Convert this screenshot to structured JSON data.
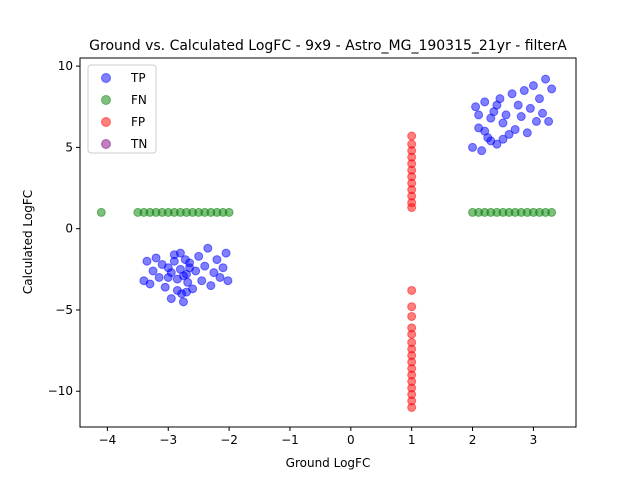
{
  "chart_data": {
    "type": "scatter",
    "title": "Ground vs. Calculated LogFC - 9x9 - Astro_MG_190315_21yr - filterA",
    "xlabel": "Ground LogFC",
    "ylabel": "Calculated LogFC",
    "xlim": [
      -4.45,
      3.7
    ],
    "ylim": [
      -12.2,
      10.5
    ],
    "xticks": [
      -4,
      -3,
      -2,
      -1,
      0,
      1,
      2,
      3
    ],
    "yticks": [
      -10,
      -5,
      0,
      5,
      10
    ],
    "grid": false,
    "legend_position": "top-left",
    "series": [
      {
        "name": "TP",
        "color": "#0000ff",
        "points": [
          [
            -3.4,
            -3.2
          ],
          [
            -3.35,
            -2.0
          ],
          [
            -3.3,
            -3.4
          ],
          [
            -3.25,
            -2.6
          ],
          [
            -3.2,
            -1.8
          ],
          [
            -3.15,
            -3.0
          ],
          [
            -3.1,
            -2.2
          ],
          [
            -3.05,
            -3.6
          ],
          [
            -3.0,
            -2.4
          ],
          [
            -2.95,
            -4.3
          ],
          [
            -2.9,
            -1.6
          ],
          [
            -2.85,
            -3.1
          ],
          [
            -2.8,
            -2.5
          ],
          [
            -2.78,
            -4.0
          ],
          [
            -2.75,
            -4.5
          ],
          [
            -2.72,
            -1.9
          ],
          [
            -2.7,
            -2.8
          ],
          [
            -2.68,
            -3.3
          ],
          [
            -2.65,
            -2.1
          ],
          [
            -2.6,
            -3.7
          ],
          [
            -2.55,
            -2.6
          ],
          [
            -2.5,
            -1.7
          ],
          [
            -2.45,
            -3.2
          ],
          [
            -2.4,
            -2.3
          ],
          [
            -2.35,
            -1.2
          ],
          [
            -2.3,
            -3.5
          ],
          [
            -2.25,
            -2.7
          ],
          [
            -2.2,
            -1.9
          ],
          [
            -2.15,
            -3.0
          ],
          [
            -2.1,
            -2.4
          ],
          [
            -2.05,
            -1.5
          ],
          [
            -2.02,
            -3.2
          ],
          [
            -2.9,
            -2.0
          ],
          [
            -2.85,
            -3.8
          ],
          [
            -2.8,
            -1.5
          ],
          [
            -2.75,
            -2.9
          ],
          [
            -2.7,
            -3.9
          ],
          [
            -2.65,
            -2.4
          ],
          [
            -3.0,
            -3.0
          ],
          [
            -2.95,
            -2.7
          ],
          [
            2.0,
            5.0
          ],
          [
            2.05,
            7.5
          ],
          [
            2.1,
            6.2
          ],
          [
            2.15,
            4.8
          ],
          [
            2.2,
            7.8
          ],
          [
            2.25,
            5.6
          ],
          [
            2.3,
            6.8
          ],
          [
            2.35,
            7.2
          ],
          [
            2.4,
            5.2
          ],
          [
            2.45,
            8.0
          ],
          [
            2.5,
            6.5
          ],
          [
            2.55,
            7.0
          ],
          [
            2.6,
            5.8
          ],
          [
            2.65,
            8.3
          ],
          [
            2.7,
            6.1
          ],
          [
            2.75,
            7.6
          ],
          [
            2.8,
            6.9
          ],
          [
            2.85,
            8.5
          ],
          [
            2.9,
            5.9
          ],
          [
            2.95,
            7.4
          ],
          [
            3.0,
            8.8
          ],
          [
            3.05,
            6.6
          ],
          [
            3.1,
            8.0
          ],
          [
            3.15,
            7.1
          ],
          [
            3.2,
            9.2
          ],
          [
            3.25,
            6.6
          ],
          [
            3.3,
            8.6
          ],
          [
            2.1,
            7.0
          ],
          [
            2.2,
            6.0
          ],
          [
            2.3,
            5.4
          ],
          [
            2.4,
            7.6
          ],
          [
            2.5,
            5.5
          ]
        ]
      },
      {
        "name": "FN",
        "color": "#008000",
        "points": [
          [
            -4.1,
            1.0
          ],
          [
            -3.5,
            1.0
          ],
          [
            -3.4,
            1.0
          ],
          [
            -3.3,
            1.0
          ],
          [
            -3.2,
            1.0
          ],
          [
            -3.1,
            1.0
          ],
          [
            -3.0,
            1.0
          ],
          [
            -2.9,
            1.0
          ],
          [
            -2.8,
            1.0
          ],
          [
            -2.7,
            1.0
          ],
          [
            -2.6,
            1.0
          ],
          [
            -2.5,
            1.0
          ],
          [
            -2.4,
            1.0
          ],
          [
            -2.3,
            1.0
          ],
          [
            -2.2,
            1.0
          ],
          [
            -2.1,
            1.0
          ],
          [
            -2.0,
            1.0
          ],
          [
            2.0,
            1.0
          ],
          [
            2.1,
            1.0
          ],
          [
            2.2,
            1.0
          ],
          [
            2.3,
            1.0
          ],
          [
            2.4,
            1.0
          ],
          [
            2.5,
            1.0
          ],
          [
            2.6,
            1.0
          ],
          [
            2.7,
            1.0
          ],
          [
            2.8,
            1.0
          ],
          [
            2.9,
            1.0
          ],
          [
            3.0,
            1.0
          ],
          [
            3.1,
            1.0
          ],
          [
            3.2,
            1.0
          ],
          [
            3.3,
            1.0
          ]
        ]
      },
      {
        "name": "FP",
        "color": "#ff0000",
        "points": [
          [
            1.0,
            5.7
          ],
          [
            1.0,
            5.2
          ],
          [
            1.0,
            4.8
          ],
          [
            1.0,
            4.4
          ],
          [
            1.0,
            4.0
          ],
          [
            1.0,
            3.6
          ],
          [
            1.0,
            3.2
          ],
          [
            1.0,
            2.8
          ],
          [
            1.0,
            2.4
          ],
          [
            1.0,
            2.0
          ],
          [
            1.0,
            1.6
          ],
          [
            1.0,
            1.3
          ],
          [
            1.0,
            -3.8
          ],
          [
            1.0,
            -4.8
          ],
          [
            1.0,
            -5.4
          ],
          [
            1.0,
            -6.1
          ],
          [
            1.0,
            -6.5
          ],
          [
            1.0,
            -7.0
          ],
          [
            1.0,
            -7.4
          ],
          [
            1.0,
            -7.8
          ],
          [
            1.0,
            -8.2
          ],
          [
            1.0,
            -8.6
          ],
          [
            1.0,
            -9.0
          ],
          [
            1.0,
            -9.4
          ],
          [
            1.0,
            -9.8
          ],
          [
            1.0,
            -10.2
          ],
          [
            1.0,
            -10.6
          ],
          [
            1.0,
            -11.0
          ]
        ]
      },
      {
        "name": "TN",
        "color": "#800080",
        "points": []
      }
    ]
  }
}
